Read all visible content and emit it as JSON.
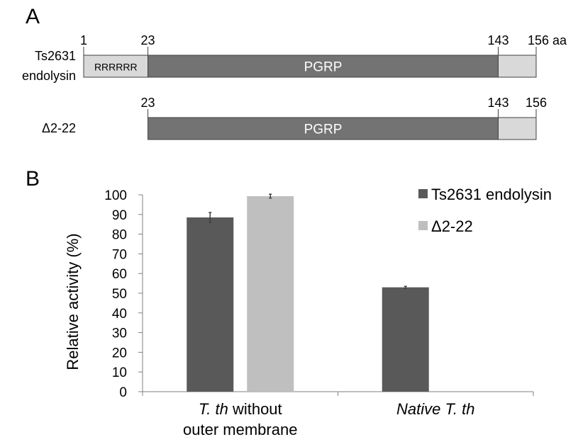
{
  "panel_a": {
    "label": "A",
    "constructs": [
      {
        "name_lines": [
          "Ts2631",
          "endolysin"
        ],
        "start": 1,
        "end": 156,
        "pos_labels": [
          "1",
          "23",
          "143",
          "156 aa"
        ],
        "segments": [
          {
            "from": 1,
            "to": 23,
            "text": "RRRRRR",
            "color": "#d9d9d9"
          },
          {
            "from": 23,
            "to": 143,
            "text": "PGRP",
            "color": "#737373"
          },
          {
            "from": 143,
            "to": 156,
            "text": "",
            "color": "#d9d9d9"
          }
        ]
      },
      {
        "name_lines": [
          "Δ2-22"
        ],
        "start": 23,
        "end": 156,
        "pos_labels": [
          "23",
          "143",
          "156"
        ],
        "segments": [
          {
            "from": 23,
            "to": 143,
            "text": "PGRP",
            "color": "#737373"
          },
          {
            "from": 143,
            "to": 156,
            "text": "",
            "color": "#d9d9d9"
          }
        ]
      }
    ]
  },
  "panel_b": {
    "label": "B"
  },
  "chart_data": {
    "type": "bar",
    "ylabel": "Relative activity (%)",
    "ylim": [
      0,
      100
    ],
    "yticks": [
      0,
      10,
      20,
      30,
      40,
      50,
      60,
      70,
      80,
      90,
      100
    ],
    "categories": [
      [
        "T. th",
        " without",
        "outer membrane"
      ],
      [
        "Native T. th"
      ]
    ],
    "series": [
      {
        "name": "Ts2631 endolysin",
        "values": [
          88.5,
          53
        ],
        "errors": [
          2.5,
          0.5
        ],
        "color": "#595959"
      },
      {
        "name": "Δ2-22",
        "values": [
          99.3,
          0
        ],
        "errors": [
          1,
          0
        ],
        "color": "#bfbfbf"
      }
    ],
    "legend_position": "top-right",
    "grid": false
  }
}
